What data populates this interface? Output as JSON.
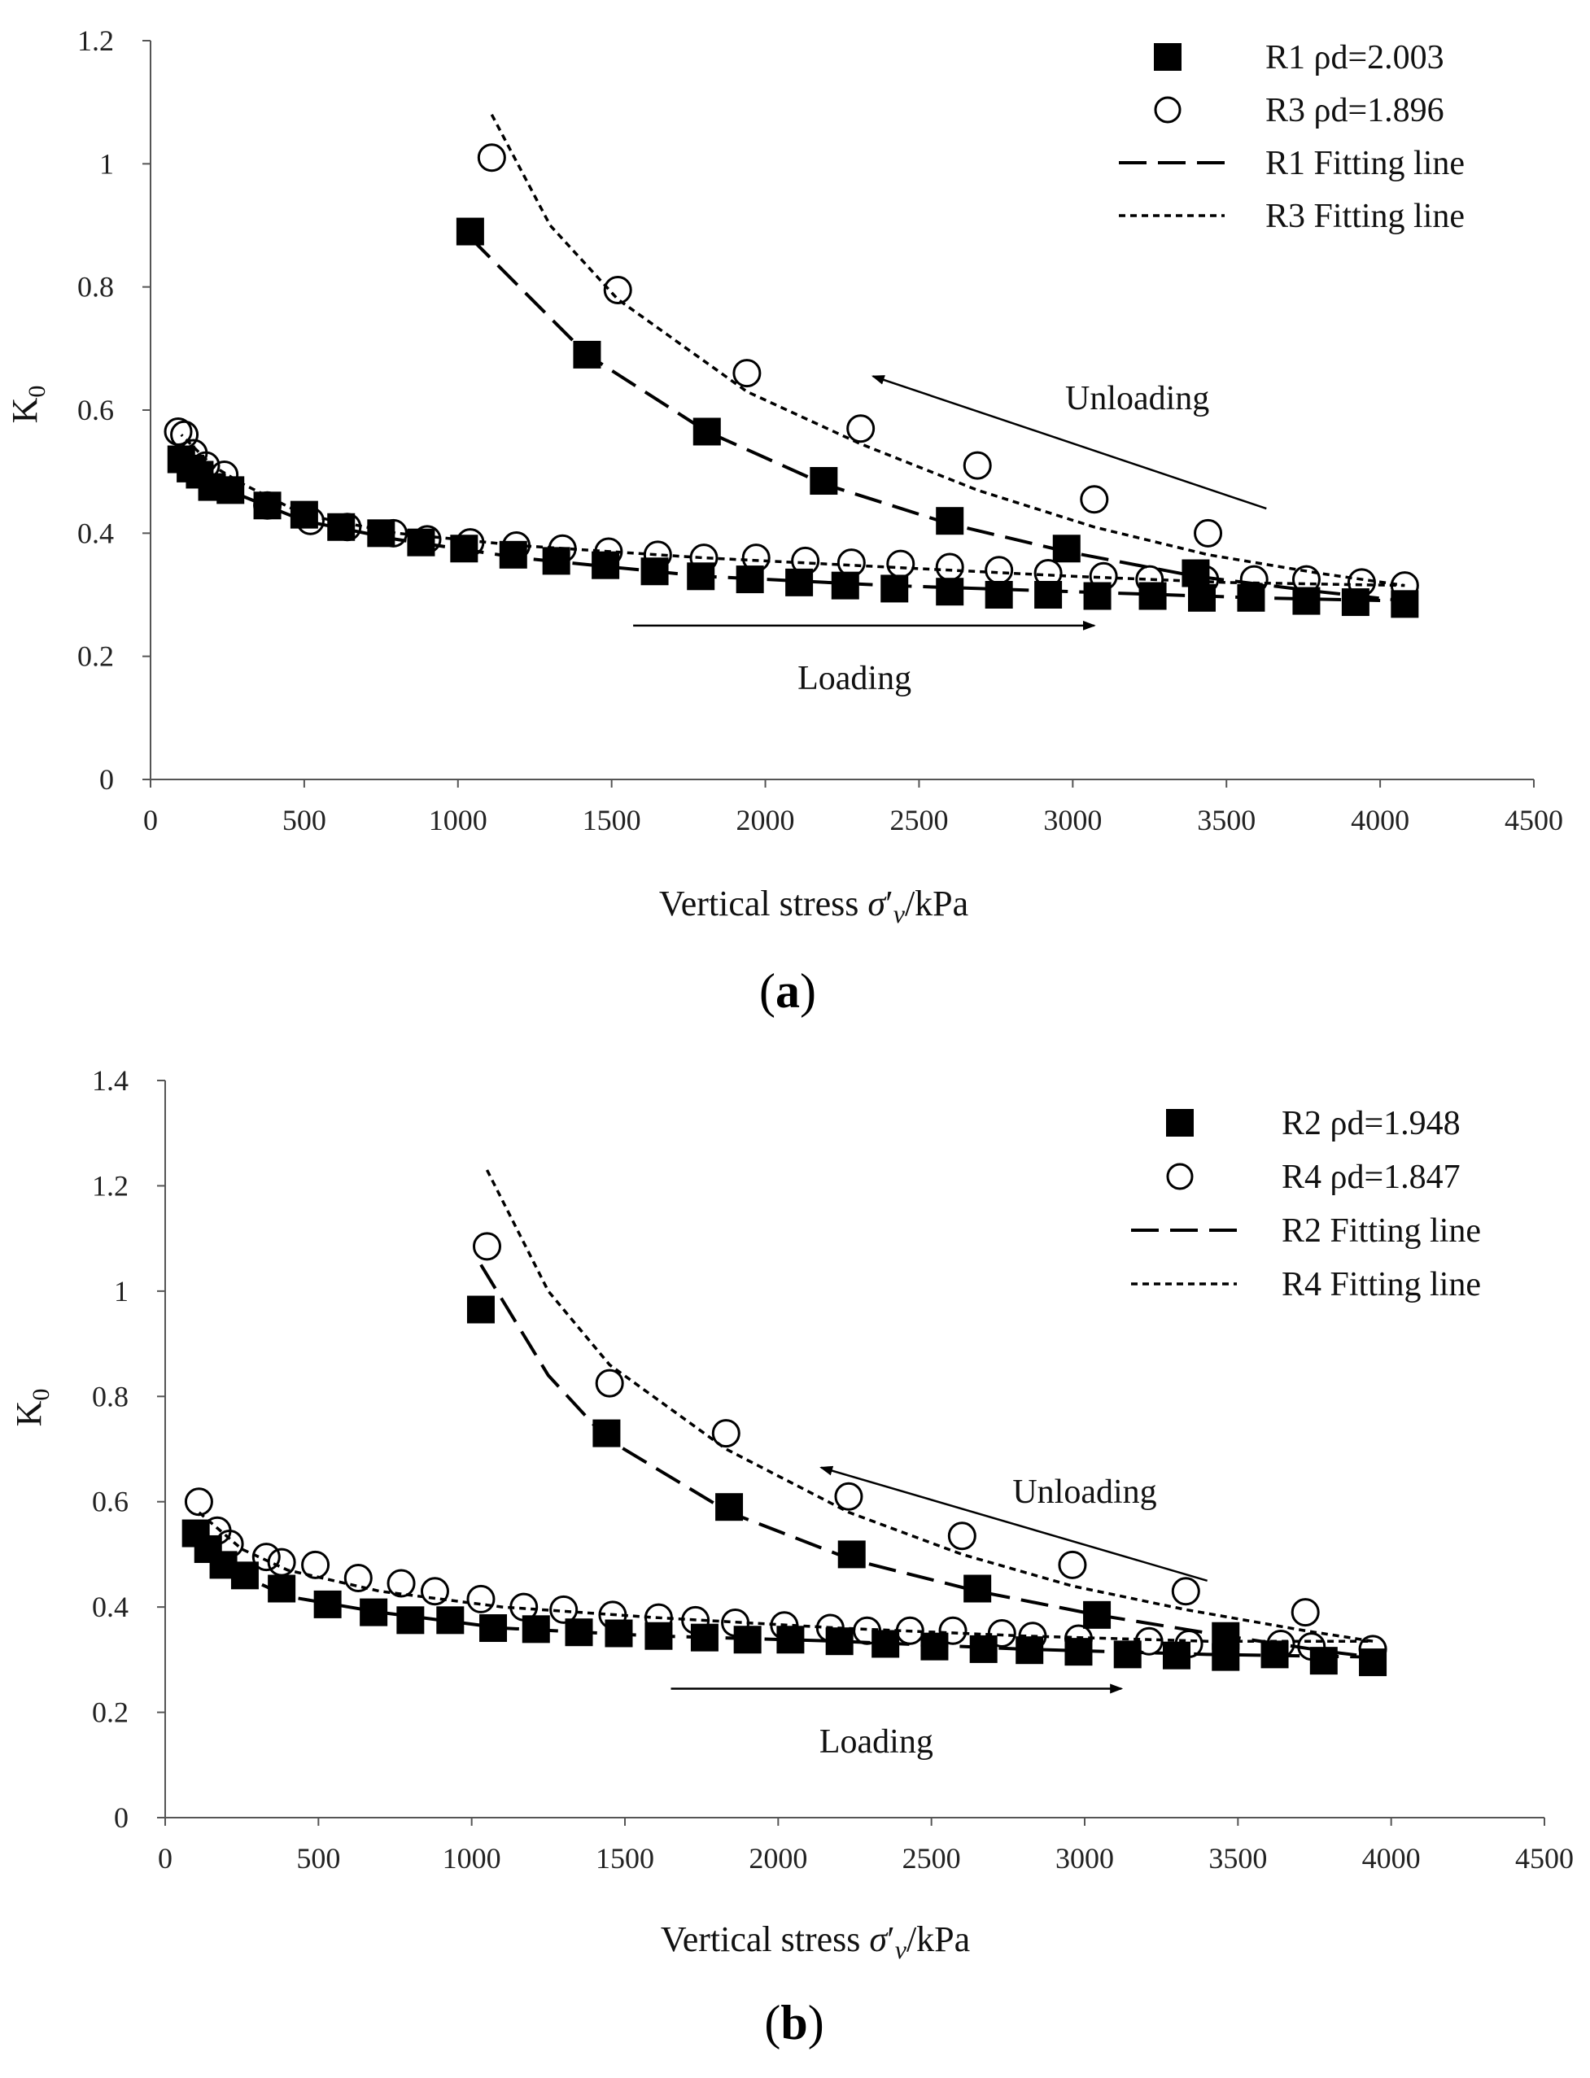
{
  "chart_data": [
    {
      "type": "scatter",
      "panel_label": "(a)",
      "panel_letter": "a",
      "xlabel": "Vertical stress σ′v/kPa",
      "ylabel": "K0",
      "xlim": [
        0,
        4500
      ],
      "ylim": [
        0,
        1.2
      ],
      "x_ticks": [
        "0",
        "500",
        "1000",
        "1500",
        "2000",
        "2500",
        "3000",
        "3500",
        "4000",
        "4500"
      ],
      "y_ticks": [
        "0",
        "0.2",
        "0.4",
        "0.6",
        "0.8",
        "1",
        "1.2"
      ],
      "grid": false,
      "legend_position": "top-right",
      "series": [
        {
          "name": "R1 ρd=2.003",
          "kind": "markers",
          "marker": "filled-square",
          "points": [
            [
              100,
              0.52
            ],
            [
              130,
              0.505
            ],
            [
              160,
              0.495
            ],
            [
              200,
              0.475
            ],
            [
              260,
              0.47
            ],
            [
              380,
              0.445
            ],
            [
              500,
              0.43
            ],
            [
              620,
              0.41
            ],
            [
              750,
              0.4
            ],
            [
              880,
              0.385
            ],
            [
              1020,
              0.375
            ],
            [
              1180,
              0.365
            ],
            [
              1320,
              0.355
            ],
            [
              1480,
              0.348
            ],
            [
              1640,
              0.338
            ],
            [
              1790,
              0.33
            ],
            [
              1950,
              0.325
            ],
            [
              2110,
              0.32
            ],
            [
              2260,
              0.315
            ],
            [
              2420,
              0.31
            ],
            [
              2600,
              0.305
            ],
            [
              2760,
              0.3
            ],
            [
              2920,
              0.3
            ],
            [
              3080,
              0.298
            ],
            [
              3260,
              0.298
            ],
            [
              3420,
              0.295
            ],
            [
              3580,
              0.295
            ],
            [
              3760,
              0.29
            ],
            [
              3920,
              0.288
            ],
            [
              4080,
              0.285
            ],
            [
              3400,
              0.335
            ],
            [
              2980,
              0.375
            ],
            [
              2600,
              0.42
            ],
            [
              2190,
              0.485
            ],
            [
              1810,
              0.565
            ],
            [
              1420,
              0.69
            ],
            [
              1040,
              0.89
            ]
          ]
        },
        {
          "name": "R3 ρd=1.896",
          "kind": "markers",
          "marker": "open-circle",
          "points": [
            [
              90,
              0.565
            ],
            [
              110,
              0.56
            ],
            [
              140,
              0.53
            ],
            [
              180,
              0.51
            ],
            [
              240,
              0.495
            ],
            [
              380,
              0.445
            ],
            [
              520,
              0.42
            ],
            [
              640,
              0.41
            ],
            [
              790,
              0.4
            ],
            [
              900,
              0.39
            ],
            [
              1040,
              0.385
            ],
            [
              1190,
              0.38
            ],
            [
              1340,
              0.375
            ],
            [
              1490,
              0.37
            ],
            [
              1650,
              0.365
            ],
            [
              1800,
              0.36
            ],
            [
              1970,
              0.36
            ],
            [
              2130,
              0.355
            ],
            [
              2280,
              0.352
            ],
            [
              2440,
              0.35
            ],
            [
              2600,
              0.345
            ],
            [
              2760,
              0.34
            ],
            [
              2920,
              0.335
            ],
            [
              3100,
              0.33
            ],
            [
              3250,
              0.325
            ],
            [
              3430,
              0.325
            ],
            [
              3590,
              0.325
            ],
            [
              3760,
              0.325
            ],
            [
              3940,
              0.32
            ],
            [
              4080,
              0.315
            ],
            [
              3440,
              0.4
            ],
            [
              3070,
              0.455
            ],
            [
              2690,
              0.51
            ],
            [
              2310,
              0.57
            ],
            [
              1940,
              0.66
            ],
            [
              1520,
              0.795
            ],
            [
              1110,
              1.01
            ]
          ]
        },
        {
          "name": "R1 Fitting line",
          "kind": "line",
          "dash": "dashed",
          "points": [
            [
              1040,
              0.88
            ],
            [
              1420,
              0.69
            ],
            [
              1810,
              0.565
            ],
            [
              2190,
              0.48
            ],
            [
              2600,
              0.415
            ],
            [
              2980,
              0.37
            ],
            [
              3400,
              0.33
            ],
            [
              3800,
              0.305
            ],
            [
              4080,
              0.29
            ],
            [
              3600,
              0.295
            ],
            [
              3000,
              0.305
            ],
            [
              2400,
              0.315
            ],
            [
              1800,
              0.33
            ],
            [
              1200,
              0.36
            ],
            [
              800,
              0.39
            ],
            [
              500,
              0.42
            ],
            [
              300,
              0.46
            ],
            [
              200,
              0.48
            ],
            [
              100,
              0.52
            ]
          ]
        },
        {
          "name": "R3 Fitting line",
          "kind": "line",
          "dash": "dotted",
          "points": [
            [
              1110,
              1.08
            ],
            [
              1300,
              0.9
            ],
            [
              1520,
              0.78
            ],
            [
              1940,
              0.63
            ],
            [
              2310,
              0.545
            ],
            [
              2690,
              0.47
            ],
            [
              3070,
              0.41
            ],
            [
              3440,
              0.365
            ],
            [
              3800,
              0.335
            ],
            [
              4080,
              0.315
            ],
            [
              3500,
              0.32
            ],
            [
              3000,
              0.33
            ],
            [
              2400,
              0.345
            ],
            [
              1800,
              0.36
            ],
            [
              1200,
              0.38
            ],
            [
              800,
              0.4
            ],
            [
              500,
              0.43
            ],
            [
              300,
              0.48
            ],
            [
              200,
              0.51
            ],
            [
              100,
              0.56
            ]
          ]
        }
      ],
      "annotations": [
        {
          "text": "Unloading",
          "x": 3210,
          "y": 0.62
        },
        {
          "text": "Loading",
          "x": 2290,
          "y": 0.165
        }
      ],
      "arrows": [
        {
          "label": "Unloading",
          "from": [
            3630,
            0.44
          ],
          "to": [
            2350,
            0.655
          ]
        },
        {
          "label": "Loading",
          "from": [
            1570,
            0.25
          ],
          "to": [
            3070,
            0.25
          ]
        }
      ]
    },
    {
      "type": "scatter",
      "panel_label": "(b)",
      "panel_letter": "b",
      "xlabel": "Vertical stress σ′v/kPa",
      "ylabel": "K0",
      "xlim": [
        0,
        4500
      ],
      "ylim": [
        0,
        1.4
      ],
      "x_ticks": [
        "0",
        "500",
        "1000",
        "1500",
        "2000",
        "2500",
        "3000",
        "3500",
        "4000",
        "4500"
      ],
      "y_ticks": [
        "0",
        "0.2",
        "0.4",
        "0.6",
        "0.8",
        "1",
        "1.2",
        "1.4"
      ],
      "grid": false,
      "legend_position": "top-right",
      "series": [
        {
          "name": "R2 ρd=1.948",
          "kind": "markers",
          "marker": "filled-square",
          "points": [
            [
              100,
              0.54
            ],
            [
              140,
              0.51
            ],
            [
              190,
              0.48
            ],
            [
              260,
              0.46
            ],
            [
              380,
              0.435
            ],
            [
              530,
              0.405
            ],
            [
              680,
              0.39
            ],
            [
              800,
              0.375
            ],
            [
              930,
              0.375
            ],
            [
              1070,
              0.36
            ],
            [
              1210,
              0.358
            ],
            [
              1350,
              0.352
            ],
            [
              1480,
              0.35
            ],
            [
              1610,
              0.345
            ],
            [
              1760,
              0.342
            ],
            [
              1900,
              0.338
            ],
            [
              2040,
              0.338
            ],
            [
              2200,
              0.335
            ],
            [
              2350,
              0.33
            ],
            [
              2510,
              0.325
            ],
            [
              2670,
              0.32
            ],
            [
              2820,
              0.318
            ],
            [
              2980,
              0.315
            ],
            [
              3140,
              0.31
            ],
            [
              3300,
              0.308
            ],
            [
              3460,
              0.305
            ],
            [
              3620,
              0.31
            ],
            [
              3780,
              0.298
            ],
            [
              3940,
              0.295
            ],
            [
              3460,
              0.345
            ],
            [
              3040,
              0.385
            ],
            [
              2650,
              0.435
            ],
            [
              2240,
              0.5
            ],
            [
              1840,
              0.59
            ],
            [
              1440,
              0.73
            ],
            [
              1030,
              0.965
            ]
          ]
        },
        {
          "name": "R4 ρd=1.847",
          "kind": "markers",
          "marker": "open-circle",
          "points": [
            [
              110,
              0.6
            ],
            [
              170,
              0.545
            ],
            [
              210,
              0.52
            ],
            [
              330,
              0.495
            ],
            [
              380,
              0.485
            ],
            [
              490,
              0.48
            ],
            [
              630,
              0.455
            ],
            [
              770,
              0.445
            ],
            [
              880,
              0.43
            ],
            [
              1030,
              0.415
            ],
            [
              1170,
              0.4
            ],
            [
              1300,
              0.395
            ],
            [
              1460,
              0.385
            ],
            [
              1610,
              0.38
            ],
            [
              1730,
              0.375
            ],
            [
              1860,
              0.37
            ],
            [
              2020,
              0.365
            ],
            [
              2170,
              0.36
            ],
            [
              2290,
              0.355
            ],
            [
              2430,
              0.355
            ],
            [
              2570,
              0.355
            ],
            [
              2730,
              0.35
            ],
            [
              2830,
              0.345
            ],
            [
              2980,
              0.34
            ],
            [
              3210,
              0.335
            ],
            [
              3340,
              0.33
            ],
            [
              3640,
              0.33
            ],
            [
              3740,
              0.325
            ],
            [
              3940,
              0.32
            ],
            [
              3720,
              0.39
            ],
            [
              3330,
              0.43
            ],
            [
              2960,
              0.48
            ],
            [
              2600,
              0.535
            ],
            [
              2230,
              0.61
            ],
            [
              1830,
              0.73
            ],
            [
              1450,
              0.825
            ],
            [
              1050,
              1.085
            ]
          ]
        },
        {
          "name": "R2 Fitting line",
          "kind": "line",
          "dash": "dashed",
          "points": [
            [
              1030,
              1.05
            ],
            [
              1250,
              0.84
            ],
            [
              1440,
              0.72
            ],
            [
              1840,
              0.58
            ],
            [
              2240,
              0.49
            ],
            [
              2650,
              0.43
            ],
            [
              3040,
              0.385
            ],
            [
              3460,
              0.345
            ],
            [
              3800,
              0.315
            ],
            [
              3940,
              0.305
            ],
            [
              3400,
              0.31
            ],
            [
              2800,
              0.32
            ],
            [
              2200,
              0.335
            ],
            [
              1600,
              0.345
            ],
            [
              1100,
              0.36
            ],
            [
              700,
              0.39
            ],
            [
              400,
              0.42
            ],
            [
              250,
              0.46
            ],
            [
              100,
              0.54
            ]
          ]
        },
        {
          "name": "R4 Fitting line",
          "kind": "line",
          "dash": "dotted",
          "points": [
            [
              1050,
              1.23
            ],
            [
              1250,
              1.0
            ],
            [
              1450,
              0.86
            ],
            [
              1830,
              0.7
            ],
            [
              2230,
              0.58
            ],
            [
              2600,
              0.5
            ],
            [
              2960,
              0.44
            ],
            [
              3330,
              0.395
            ],
            [
              3720,
              0.355
            ],
            [
              3940,
              0.335
            ],
            [
              3400,
              0.335
            ],
            [
              2800,
              0.345
            ],
            [
              2200,
              0.36
            ],
            [
              1600,
              0.38
            ],
            [
              1100,
              0.4
            ],
            [
              700,
              0.43
            ],
            [
              400,
              0.47
            ],
            [
              250,
              0.51
            ],
            [
              110,
              0.58
            ]
          ]
        }
      ],
      "annotations": [
        {
          "text": "Unloading",
          "x": 3000,
          "y": 0.62
        },
        {
          "text": "Loading",
          "x": 2320,
          "y": 0.145
        }
      ],
      "arrows": [
        {
          "label": "Unloading",
          "from": [
            3400,
            0.45
          ],
          "to": [
            2140,
            0.665
          ]
        },
        {
          "label": "Loading",
          "from": [
            1650,
            0.245
          ],
          "to": [
            3120,
            0.245
          ]
        }
      ]
    }
  ]
}
